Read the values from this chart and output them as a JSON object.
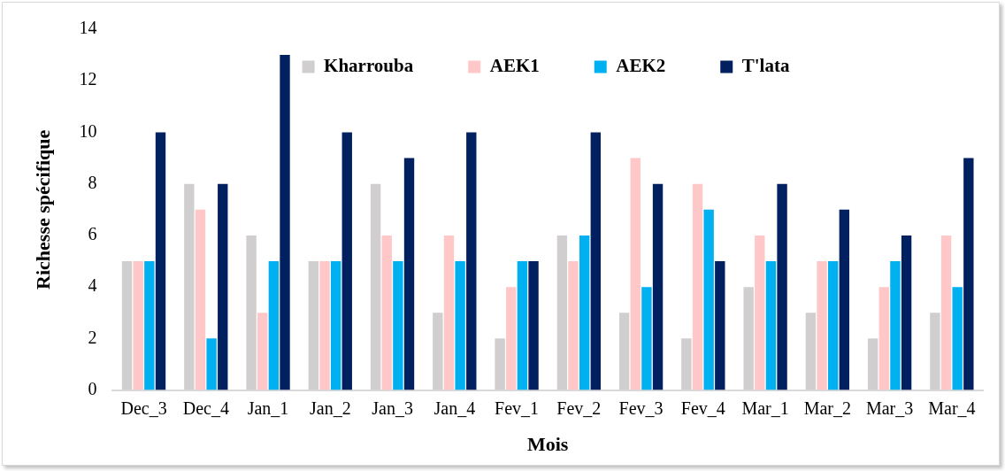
{
  "chart_data": {
    "type": "bar",
    "xlabel": "Mois",
    "ylabel": "Richesse spécifique",
    "categories": [
      "Dec_3",
      "Dec_4",
      "Jan_1",
      "Jan_2",
      "Jan_3",
      "Jan_4",
      "Fev_1",
      "Fev_2",
      "Fev_3",
      "Fev_4",
      "Mar_1",
      "Mar_2",
      "Mar_3",
      "Mar_4"
    ],
    "series": [
      {
        "name": "Kharrouba",
        "color": "#d0cece",
        "values": [
          5,
          8,
          6,
          5,
          8,
          3,
          2,
          6,
          3,
          2,
          4,
          3,
          2,
          3
        ]
      },
      {
        "name": "AEK1",
        "color": "#ffc7c7",
        "values": [
          5,
          7,
          3,
          5,
          6,
          6,
          4,
          5,
          9,
          8,
          6,
          5,
          4,
          6
        ]
      },
      {
        "name": "AEK2",
        "color": "#00b0f0",
        "values": [
          5,
          2,
          5,
          5,
          5,
          5,
          5,
          6,
          4,
          7,
          5,
          5,
          5,
          4
        ]
      },
      {
        "name": "T'lata",
        "color": "#002060",
        "values": [
          10,
          8,
          13,
          10,
          9,
          10,
          5,
          10,
          8,
          5,
          8,
          7,
          6,
          9
        ]
      }
    ],
    "ylim": [
      0,
      14
    ],
    "yticks": [
      0,
      2,
      4,
      6,
      8,
      10,
      12,
      14
    ],
    "legend": "top"
  }
}
